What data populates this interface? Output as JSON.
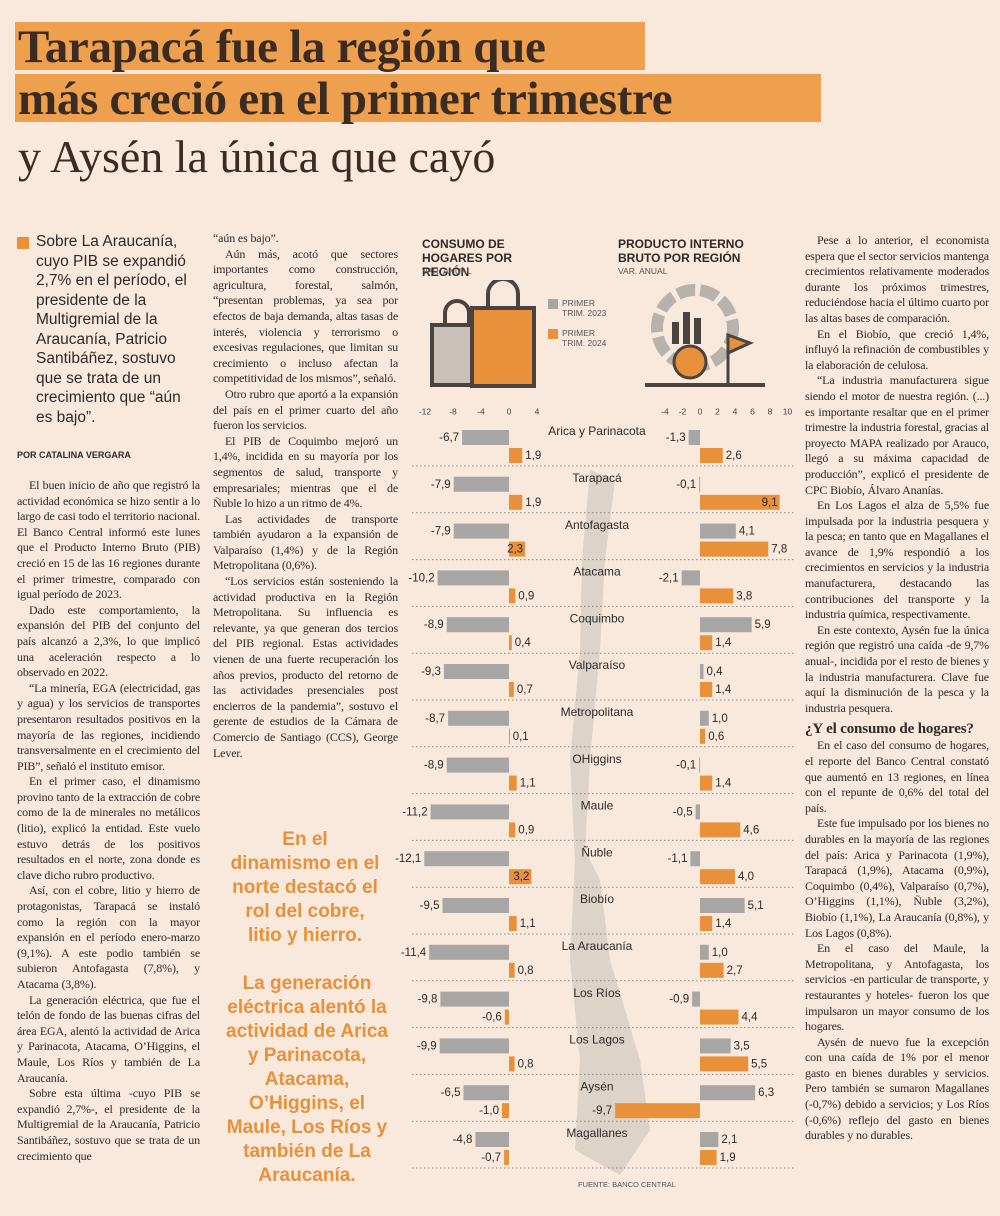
{
  "header": {
    "title": [
      "Tarapacá fue la región que",
      "más creció en el primer trimestre"
    ],
    "subtitle": "y Aysén la única que cayó"
  },
  "lead": "Sobre La Araucanía, cuyo PIB se expandió 2,7% en el período, el presidente de la Multigremial de la Araucanía, Patricio Santibáñez, sostuvo que se trata de un crecimiento que “aún es bajo”.",
  "byline": "POR CATALINA VERGARA",
  "column_1": [
    "El buen inicio de año que registró la actividad económica se hizo sentir a lo largo de casi todo el territorio nacional. El Banco Central informó este lunes que el Producto Interno Bruto (PIB) creció en 15 de las 16 regiones durante el primer trimestre, comparado con igual período de 2023.",
    "Dado este comportamiento, la expansión del PIB del conjunto del país alcanzó a 2,3%, lo que implicó una aceleración respecto a lo observado en 2022.",
    "“La minería, EGA (electricidad, gas y agua) y los servicios de transportes presentaron resultados positivos en la mayoría de las regiones, incidiendo transversalmente en el crecimiento del PIB”, señaló el instituto emisor.",
    "En el primer caso, el dinamismo provino tanto de la extracción de cobre como de la de minerales no metálicos (litio), explicó la entidad. Este vuelo estuvo detrás de los positivos resultados en el norte, zona donde es clave dicho rubro productivo.",
    "Así, con el cobre, litio y hierro de protagonistas, Tarapacá se instaló como la región con la mayor expansión en el período enero-marzo (9,1%). A este podio también se subieron Antofagasta (7,8%), y Atacama (3,8%).",
    "La generación eléctrica, que fue el telón de fondo de las buenas cifras del área EGA, alentó la actividad de Arica y Parinacota, Atacama, O’Higgins, el Maule, Los Ríos y también de La Araucanía.",
    "Sobre esta última -cuyo PIB se expandió 2,7%-, el presidente de la Multigremial de la Araucanía, Patricio Santibáñez, sostuvo que se trata de un crecimiento que"
  ],
  "column_2": [
    "“aún es bajo”.",
    "Aún más, acotó que sectores importantes como construcción, agricultura, forestal, salmón, “presentan problemas, ya sea por efectos de baja demanda, altas tasas de interés, violencia y terrorismo o excesivas regulaciones, que limitan su crecimiento o incluso afectan la competitividad de los mismos”, señaló.",
    "Otro rubro que aportó a la expansión del país en el primer cuarto del año fueron los servicios.",
    "El PIB de Coquimbo mejoró un 1,4%, incidida en su mayoría por los segmentos de salud, transporte y empresariales; mientras que el de Ñuble lo hizo a un ritmo de 4%.",
    "Las actividades de transporte también ayudaron a la expansión de Valparaíso (1,4%) y de la Región Metropolitana (0,6%).",
    "“Los servicios están sosteniendo la actividad productiva en la Región Metropolitana. Su influencia es relevante, ya que generan dos tercios del PIB regional. Estas actividades vienen de una fuerte recuperación los años previos, producto del retorno de las actividades presenciales post encierros de la pandemia”, sostuvo el gerente de estudios de la Cámara de Comercio de Santiago (CCS), George Lever."
  ],
  "pullquotes": [
    "En el dinamismo en el norte destacó el rol del cobre, litio y hierro.",
    "La generación eléctrica alentó la actividad de Arica y Parinacota, Atacama, O’Higgins, el Maule, Los Ríos y también de La Araucanía."
  ],
  "column_3": {
    "before": [
      "Pese a lo anterior, el economista espera que el sector servicios mantenga crecimientos relativamente moderados durante los próximos trimestres, reduciéndose hacia el último cuarto por las altas bases de comparación.",
      "En el Biobío, que creció 1,4%, influyó la refinación de combustibles y la elaboración de celulosa.",
      "“La industria manufacturera sigue siendo el motor de nuestra región. (...) es importante resaltar que en el primer trimestre la industria forestal, gracias al proyecto MAPA realizado por Arauco, llegó a su máxima capacidad de producción”, explicó el presidente de CPC Biobío, Álvaro Ananías.",
      "En Los Lagos el alza de 5,5% fue impulsada por la industria pesquera y la pesca; en tanto que en Magallanes el avance de 1,9% respondió a los crecimientos en servicios y la industria manufacturera, destacando las contribuciones del transporte y la industria química, respectivamente.",
      "En este contexto, Aysén fue la única región que registró una caída -de 9,7% anual-, incidida por el resto de bienes y la industria manufacturera. Clave fue aquí la disminución de la pesca y la industria pesquera."
    ],
    "subhead": "¿Y el consumo de hogares?",
    "after": [
      "En el caso del consumo de hogares, el reporte del Banco Central constató que aumentó en 13 regiones, en línea con el repunte de 0,6% del total del país.",
      "Este fue impulsado por los bienes no durables en la mayoría de las regiones del país: Arica y Parinacota (1,9%), Tarapacá (1,9%), Atacama (0,9%), Coquimbo (0,4%), Valparaíso (0,7%), O’Higgins (1,1%), Ñuble (3,2%), Biobío (1,1%), La Araucanía (0,8%), y Los Lagos (0,8%).",
      "En el caso del Maule, la Metropolitana, y Antofagasta, los servicios -en particular de transporte, y restaurantes y hoteles- fueron los que impulsaron un mayor consumo de los hogares.",
      "Aysén de nuevo fue la excepción con una caída de 1% por el menor gasto en bienes durables y servicios. Pero también se sumaron Magallanes (-0,7%) debido a servicios; y Los Ríos (-0,6%) reflejo del gasto en bienes durables y no durables."
    ]
  },
  "infographic_source": "FUENTE: BANCO CENTRAL",
  "chart_data": [
    {
      "type": "bar",
      "orientation": "horizontal",
      "title": "CONSUMO DE HOGARES POR REGIÓN",
      "subtitle": "VAR. ANUAL",
      "categories": [
        "Arica y Parinacota",
        "Tarapacá",
        "Antofagasta",
        "Atacama",
        "Coquimbo",
        "Valparaíso",
        "Metropolitana",
        "OHiggins",
        "Maule",
        "Ñuble",
        "Biobío",
        "La Araucanía",
        "Los Ríos",
        "Los Lagos",
        "Aysén",
        "Magallanes"
      ],
      "xlim": [
        -13,
        5
      ],
      "xticks": [
        -12,
        -8,
        -4,
        0,
        4
      ],
      "series": [
        {
          "name": "PRIMER TRIM. 2023",
          "color": "#a8a6a4",
          "values": [
            -6.7,
            -7.9,
            -7.9,
            -10.2,
            -8.9,
            -9.3,
            -8.7,
            -8.9,
            -11.2,
            -12.1,
            -9.5,
            -11.4,
            -9.8,
            -9.9,
            -6.5,
            -4.8
          ],
          "value_labels": [
            "-6,7",
            "-7,9",
            "-7,9",
            "-10,2",
            "-8,9",
            "-9,3",
            "-8,7",
            "-8,9",
            "-11,2",
            "-12,1",
            "-9,5",
            "-11,4",
            "-9,8",
            "-9,9",
            "-6,5",
            "-4,8"
          ]
        },
        {
          "name": "PRIMER TRIM. 2024",
          "color": "#e8903a",
          "values": [
            1.9,
            1.9,
            2.3,
            0.9,
            0.4,
            0.7,
            0.1,
            1.1,
            0.9,
            3.2,
            1.1,
            0.8,
            -0.6,
            0.8,
            -1.0,
            -0.7
          ],
          "value_labels": [
            "1,9",
            "1,9",
            "2,3",
            "0,9",
            "0,4",
            "0,7",
            "0,1",
            "1,1",
            "0,9",
            "3,2",
            "1,1",
            "0,8",
            "-0,6",
            "0,8",
            "-1,0",
            "-0,7"
          ]
        }
      ]
    },
    {
      "type": "bar",
      "orientation": "horizontal",
      "title": "PRODUCTO INTERNO BRUTO POR REGIÓN",
      "subtitle": "VAR. ANUAL",
      "xlim": [
        -10,
        11
      ],
      "xticks": [
        -4,
        -2,
        0,
        2,
        4,
        6,
        8,
        10
      ],
      "series": [
        {
          "color": "#a8a6a4",
          "values": [
            -1.3,
            -0.1,
            4.1,
            -2.1,
            5.9,
            0.4,
            1.0,
            -0.1,
            -0.5,
            -1.1,
            5.1,
            1.0,
            -0.9,
            3.5,
            6.3,
            2.1
          ],
          "value_labels": [
            "-1,3",
            "-0,1",
            "4,1",
            "-2,1",
            "5,9",
            "0,4",
            "1,0",
            "-0,1",
            "-0,5",
            "-1,1",
            "5,1",
            "1,0",
            "-0,9",
            "3,5",
            "6,3",
            "2,1"
          ]
        },
        {
          "color": "#e8903a",
          "values": [
            2.6,
            9.1,
            7.8,
            3.8,
            1.4,
            1.4,
            0.6,
            1.4,
            4.6,
            4.0,
            1.4,
            2.7,
            4.4,
            5.5,
            -9.7,
            1.9
          ],
          "value_labels": [
            "2,6",
            "9,1",
            "7,8",
            "3,8",
            "1,4",
            "1,4",
            "0,6",
            "1,4",
            "4,6",
            "4,0",
            "1,4",
            "2,7",
            "4,4",
            "5,5",
            "-9,7",
            "1,9"
          ]
        }
      ]
    }
  ]
}
